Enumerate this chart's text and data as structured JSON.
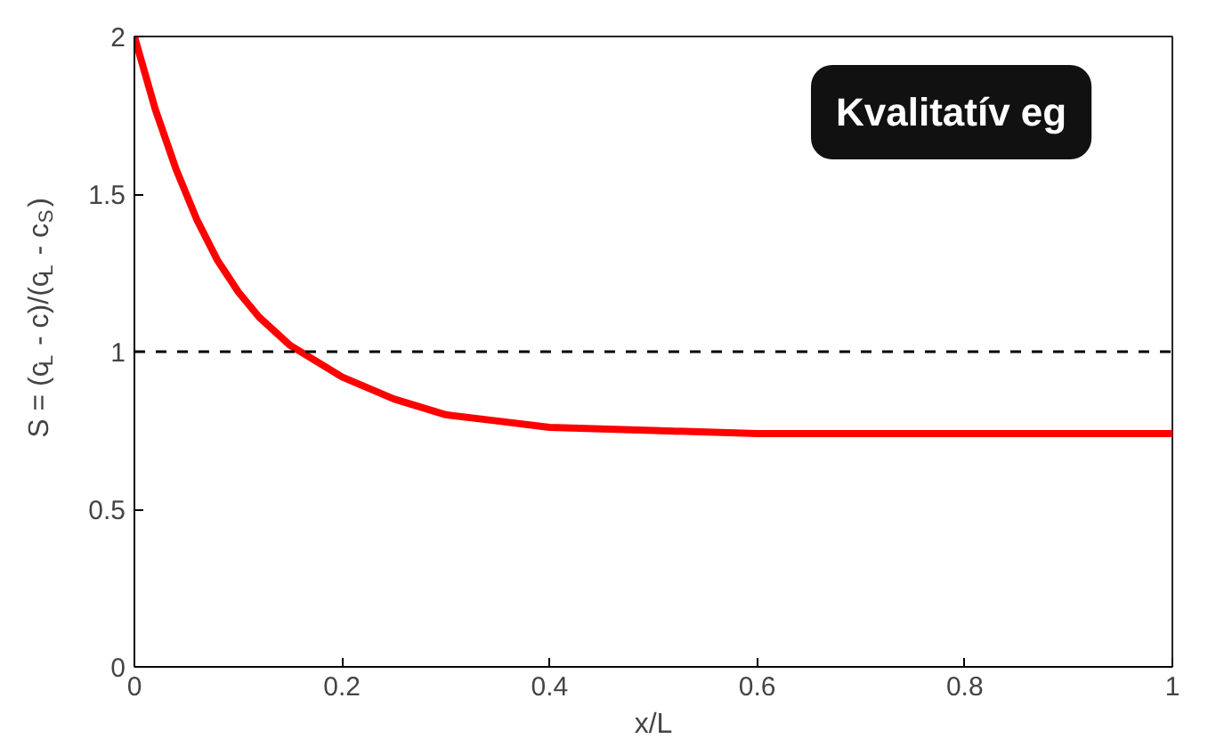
{
  "chart_data": {
    "type": "line",
    "xlabel": "x/L",
    "ylabel": "S = (c$_{L}$ - c)/(c$_{L}$ - c$_{S}$)",
    "annotations": [
      "Kvalitatív eg"
    ],
    "x": [
      0,
      0.02,
      0.04,
      0.06,
      0.08,
      0.1,
      0.12,
      0.15,
      0.18,
      0.2,
      0.25,
      0.3,
      0.35,
      0.4,
      0.5,
      0.6,
      0.8,
      1
    ],
    "series": [
      {
        "color": "#ff0000",
        "values": [
          2,
          1.77,
          1.58,
          1.42,
          1.29,
          1.19,
          1.11,
          1.02,
          0.96,
          0.92,
          0.85,
          0.8,
          0.78,
          0.76,
          0.75,
          0.74,
          0.74,
          0.74
        ]
      }
    ],
    "xlim": [
      0,
      1
    ],
    "ylim": [
      0,
      2
    ],
    "xticks": [
      0,
      0.2,
      0.4,
      0.6,
      0.8,
      1
    ],
    "yticks": [
      0,
      0.5,
      1,
      1.5,
      2
    ],
    "ref_lines": [
      {
        "axis": "y",
        "value": 1,
        "color": "#000000",
        "line_style": "dashed"
      }
    ],
    "grid": false,
    "marker": "none",
    "line_style": "solid"
  }
}
